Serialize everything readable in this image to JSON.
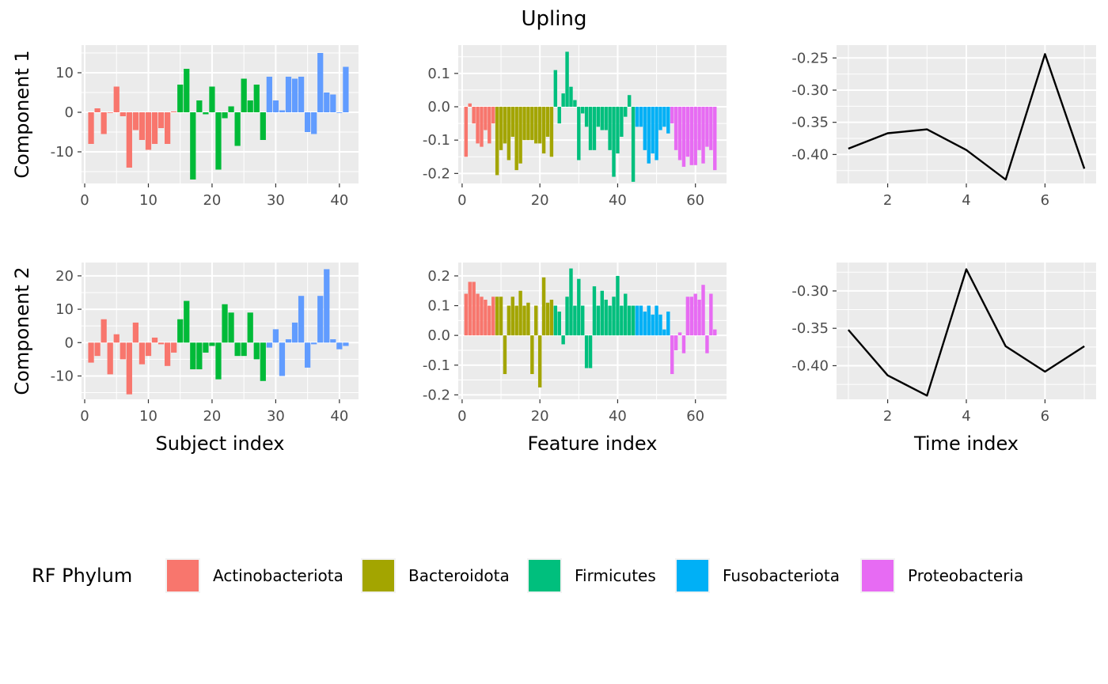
{
  "title": "Upling",
  "colors": {
    "panel_bg": "#EBEBEB",
    "grid": "#FFFFFF",
    "line": "#000000"
  },
  "rows": [
    {
      "label": "Component 1"
    },
    {
      "label": "Component 2"
    }
  ],
  "legend": {
    "title": "RF  Phylum",
    "items": [
      {
        "label": "Actinobacteriota",
        "color": "#F8766D"
      },
      {
        "label": "Bacteroidota",
        "color": "#A3A500"
      },
      {
        "label": "Firmicutes",
        "color": "#00BF7D"
      },
      {
        "label": "Fusobacteriota",
        "color": "#00B0F6"
      },
      {
        "label": "Proteobacteria",
        "color": "#E76BF3"
      }
    ]
  },
  "chart_data": [
    {
      "type": "bar",
      "row": 0,
      "col": 0,
      "xlabel": "",
      "ylabel": "Component 1",
      "xlim": [
        -0.5,
        43
      ],
      "ylim": [
        -18,
        17
      ],
      "xticks": [
        0,
        10,
        20,
        30,
        40
      ],
      "yticks": [
        -10,
        0,
        10
      ],
      "colors": [
        "#F8766D",
        "#00BA38",
        "#619CFF"
      ],
      "x": [
        1,
        2,
        3,
        4,
        5,
        6,
        7,
        8,
        9,
        10,
        11,
        12,
        13,
        14,
        15,
        16,
        17,
        18,
        19,
        20,
        21,
        22,
        23,
        24,
        25,
        26,
        27,
        28,
        29,
        30,
        31,
        32,
        33,
        34,
        35,
        36,
        37,
        38,
        39,
        40,
        41
      ],
      "values": [
        -8,
        1,
        -5.5,
        0,
        6.5,
        -1,
        -14,
        -4.5,
        -7,
        -9.5,
        -8,
        -4,
        -8,
        0.2,
        7,
        11,
        -17,
        3,
        -0.5,
        6.5,
        -14.5,
        -1.5,
        1.5,
        -8.5,
        8.5,
        3,
        7,
        -7,
        9,
        3,
        0.5,
        9,
        8.5,
        9,
        -5,
        -5.5,
        15,
        5,
        4.5,
        0,
        11.5
      ],
      "groups": [
        0,
        0,
        0,
        0,
        0,
        0,
        0,
        0,
        0,
        0,
        0,
        0,
        0,
        0,
        1,
        1,
        1,
        1,
        1,
        1,
        1,
        1,
        1,
        1,
        1,
        1,
        1,
        1,
        2,
        2,
        2,
        2,
        2,
        2,
        2,
        2,
        2,
        2,
        2,
        2,
        2
      ]
    },
    {
      "type": "bar",
      "row": 0,
      "col": 1,
      "xlabel": "",
      "ylabel": "",
      "xlim": [
        -1,
        68
      ],
      "ylim": [
        -0.23,
        0.185
      ],
      "xticks": [
        0,
        20,
        40,
        60
      ],
      "yticks": [
        -0.2,
        -0.1,
        0.0,
        0.1
      ],
      "colors": [
        "#F8766D",
        "#A3A500",
        "#00BF7D",
        "#00B0F6",
        "#E76BF3"
      ],
      "x": [
        1,
        2,
        3,
        4,
        5,
        6,
        7,
        8,
        9,
        10,
        11,
        12,
        13,
        14,
        15,
        16,
        17,
        18,
        19,
        20,
        21,
        22,
        23,
        24,
        25,
        26,
        27,
        28,
        29,
        30,
        31,
        32,
        33,
        34,
        35,
        36,
        37,
        38,
        39,
        40,
        41,
        42,
        43,
        44,
        45,
        46,
        47,
        48,
        49,
        50,
        51,
        52,
        53,
        54,
        55,
        56,
        57,
        58,
        59,
        60,
        61,
        62,
        63,
        64,
        65
      ],
      "values": [
        -0.15,
        0.01,
        -0.05,
        -0.11,
        -0.12,
        -0.07,
        -0.11,
        -0.05,
        -0.205,
        -0.13,
        -0.11,
        -0.16,
        -0.09,
        -0.19,
        -0.17,
        -0.1,
        -0.1,
        -0.1,
        -0.11,
        -0.11,
        -0.14,
        -0.09,
        -0.15,
        0.11,
        -0.05,
        0.04,
        0.165,
        0.06,
        0.02,
        -0.16,
        -0.02,
        -0.06,
        -0.13,
        -0.13,
        -0.06,
        -0.07,
        -0.07,
        -0.13,
        -0.21,
        -0.14,
        -0.09,
        -0.03,
        0.035,
        -0.225,
        -0.06,
        -0.06,
        -0.13,
        -0.17,
        -0.14,
        -0.16,
        -0.07,
        -0.06,
        -0.08,
        -0.05,
        -0.13,
        -0.16,
        -0.18,
        -0.15,
        -0.175,
        -0.175,
        -0.13,
        -0.17,
        -0.12,
        -0.13,
        -0.19
      ],
      "groups": [
        0,
        0,
        0,
        0,
        0,
        0,
        0,
        0,
        1,
        1,
        1,
        1,
        1,
        1,
        1,
        1,
        1,
        1,
        1,
        1,
        1,
        1,
        1,
        2,
        2,
        2,
        2,
        2,
        2,
        2,
        2,
        2,
        2,
        2,
        2,
        2,
        2,
        2,
        2,
        2,
        2,
        2,
        2,
        2,
        3,
        3,
        3,
        3,
        3,
        3,
        3,
        3,
        3,
        4,
        4,
        4,
        4,
        4,
        4,
        4,
        4,
        4,
        4,
        4,
        4
      ]
    },
    {
      "type": "line",
      "row": 0,
      "col": 2,
      "xlabel": "",
      "ylabel": "",
      "xlim": [
        0.7,
        7.3
      ],
      "ylim": [
        -0.445,
        -0.23
      ],
      "xticks": [
        2,
        4,
        6
      ],
      "yticks": [
        -0.4,
        -0.35,
        -0.3,
        -0.25
      ],
      "x": [
        1,
        2,
        3,
        4,
        5,
        6,
        7
      ],
      "values": [
        -0.391,
        -0.367,
        -0.361,
        -0.393,
        -0.439,
        -0.244,
        -0.422
      ]
    },
    {
      "type": "bar",
      "row": 1,
      "col": 0,
      "xlabel": "Subject index",
      "ylabel": "Component 2",
      "xlim": [
        -0.5,
        43
      ],
      "ylim": [
        -17,
        24
      ],
      "xticks": [
        0,
        10,
        20,
        30,
        40
      ],
      "yticks": [
        -10,
        0,
        10,
        20
      ],
      "colors": [
        "#F8766D",
        "#00BA38",
        "#619CFF"
      ],
      "x": [
        1,
        2,
        3,
        4,
        5,
        6,
        7,
        8,
        9,
        10,
        11,
        12,
        13,
        14,
        15,
        16,
        17,
        18,
        19,
        20,
        21,
        22,
        23,
        24,
        25,
        26,
        27,
        28,
        29,
        30,
        31,
        32,
        33,
        34,
        35,
        36,
        37,
        38,
        39,
        40,
        41
      ],
      "values": [
        -6,
        -4,
        7,
        -9.5,
        2.5,
        -5,
        -15.5,
        6,
        -6.5,
        -4,
        1.5,
        -0.5,
        -7,
        -3,
        7,
        12.5,
        -8,
        -8,
        -3,
        -1,
        -11,
        11.5,
        9,
        -4,
        -4,
        9,
        -5,
        -11.5,
        -1.5,
        4,
        -10,
        1,
        6,
        14,
        -7.5,
        -0.5,
        14,
        22,
        1,
        -2,
        -1
      ],
      "groups": [
        0,
        0,
        0,
        0,
        0,
        0,
        0,
        0,
        0,
        0,
        0,
        0,
        0,
        0,
        1,
        1,
        1,
        1,
        1,
        1,
        1,
        1,
        1,
        1,
        1,
        1,
        1,
        1,
        2,
        2,
        2,
        2,
        2,
        2,
        2,
        2,
        2,
        2,
        2,
        2,
        2
      ]
    },
    {
      "type": "bar",
      "row": 1,
      "col": 1,
      "xlabel": "Feature index",
      "ylabel": "",
      "xlim": [
        -1,
        68
      ],
      "ylim": [
        -0.215,
        0.245
      ],
      "xticks": [
        0,
        20,
        40,
        60
      ],
      "yticks": [
        -0.2,
        -0.1,
        0.0,
        0.1,
        0.2
      ],
      "colors": [
        "#F8766D",
        "#A3A500",
        "#00BF7D",
        "#00B0F6",
        "#E76BF3"
      ],
      "x": [
        1,
        2,
        3,
        4,
        5,
        6,
        7,
        8,
        9,
        10,
        11,
        12,
        13,
        14,
        15,
        16,
        17,
        18,
        19,
        20,
        21,
        22,
        23,
        24,
        25,
        26,
        27,
        28,
        29,
        30,
        31,
        32,
        33,
        34,
        35,
        36,
        37,
        38,
        39,
        40,
        41,
        42,
        43,
        44,
        45,
        46,
        47,
        48,
        49,
        50,
        51,
        52,
        53,
        54,
        55,
        56,
        57,
        58,
        59,
        60,
        61,
        62,
        63,
        64,
        65
      ],
      "values": [
        0.14,
        0.18,
        0.18,
        0.14,
        0.13,
        0.12,
        0.1,
        0.13,
        0.13,
        0.13,
        -0.13,
        0.1,
        0.13,
        0.1,
        0.15,
        0.1,
        0.11,
        -0.13,
        0.1,
        -0.175,
        0.195,
        0.11,
        0.12,
        0.1,
        0.08,
        -0.03,
        0.13,
        0.225,
        0.1,
        0.19,
        0.1,
        -0.11,
        -0.11,
        0.165,
        0.1,
        0.15,
        0.12,
        0.1,
        0.13,
        0.2,
        0.1,
        0.14,
        0.1,
        0.1,
        0.1,
        0.1,
        0.08,
        0.1,
        0.07,
        0.1,
        0.07,
        0.02,
        0.08,
        -0.13,
        -0.05,
        0.01,
        -0.06,
        0.13,
        0.13,
        0.14,
        0.12,
        0.17,
        -0.06,
        0.14,
        0.02
      ],
      "groups": [
        0,
        0,
        0,
        0,
        0,
        0,
        0,
        0,
        1,
        1,
        1,
        1,
        1,
        1,
        1,
        1,
        1,
        1,
        1,
        1,
        1,
        1,
        1,
        2,
        2,
        2,
        2,
        2,
        2,
        2,
        2,
        2,
        2,
        2,
        2,
        2,
        2,
        2,
        2,
        2,
        2,
        2,
        2,
        2,
        3,
        3,
        3,
        3,
        3,
        3,
        3,
        3,
        3,
        4,
        4,
        4,
        4,
        4,
        4,
        4,
        4,
        4,
        4,
        4,
        4
      ]
    },
    {
      "type": "line",
      "row": 1,
      "col": 2,
      "xlabel": "Time index",
      "ylabel": "",
      "xlim": [
        0.7,
        7.3
      ],
      "ylim": [
        -0.445,
        -0.262
      ],
      "xticks": [
        2,
        4,
        6
      ],
      "yticks": [
        -0.4,
        -0.35,
        -0.3
      ],
      "x": [
        1,
        2,
        3,
        4,
        5,
        6,
        7
      ],
      "values": [
        -0.352,
        -0.413,
        -0.44,
        -0.271,
        -0.374,
        -0.408,
        -0.374
      ]
    }
  ]
}
